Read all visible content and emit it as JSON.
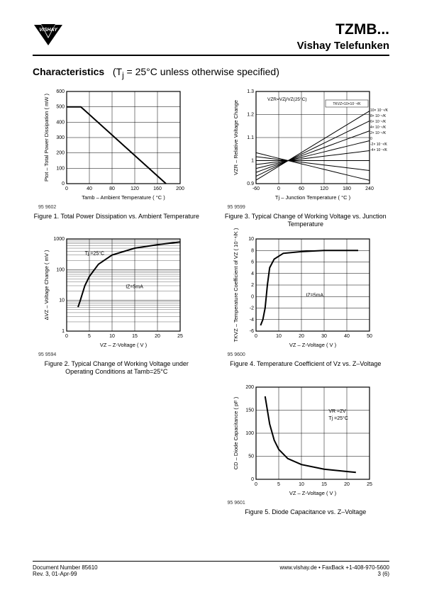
{
  "header": {
    "part_number": "TZMB...",
    "brand": "Vishay Telefunken"
  },
  "section": {
    "title": "Characteristics",
    "subtitle": "(Tj = 25°C unless otherwise specified)"
  },
  "figure1": {
    "type": "line",
    "fignum": "95 9602",
    "title": "Figure 1.  Total Power Dissipation vs.\nAmbient Temperature",
    "xlabel": "Tamb – Ambient Temperature ( °C )",
    "ylabel": "Ptot – Total Power Dissipation ( mW )",
    "xlim": [
      0,
      200
    ],
    "xtick_step": 40,
    "ylim": [
      0,
      600
    ],
    "ytick_step": 100,
    "data": [
      [
        0,
        500
      ],
      [
        25,
        500
      ],
      [
        175,
        0
      ]
    ],
    "line_color": "#000000",
    "line_width": 2,
    "grid_color": "#000000",
    "background_color": "#ffffff"
  },
  "figure2": {
    "type": "line-log",
    "fignum": "95 9594",
    "title": "Figure 2.  Typical Change of Working Voltage\nunder Operating Conditions at Tamb=25°C",
    "xlabel": "VZ – Z-Voltage ( V )",
    "ylabel": "ΔVZ – Voltage Change ( mV )",
    "xlim": [
      0,
      25
    ],
    "xtick_step": 5,
    "ylim": [
      1,
      1000
    ],
    "yticks": [
      1,
      10,
      100,
      1000
    ],
    "annotations": [
      "Tj =25°C",
      "IZ=5mA"
    ],
    "data": [
      [
        2.5,
        6
      ],
      [
        3,
        10
      ],
      [
        4,
        30
      ],
      [
        5,
        60
      ],
      [
        7,
        150
      ],
      [
        10,
        300
      ],
      [
        15,
        500
      ],
      [
        20,
        650
      ],
      [
        25,
        800
      ]
    ],
    "line_color": "#000000",
    "line_width": 2,
    "grid_color": "#000000",
    "background_color": "#ffffff"
  },
  "figure3": {
    "type": "line-multi",
    "fignum": "95 9599",
    "title": "Figure 3.  Typical Change of Working Voltage vs.\nJunction Temperature",
    "xlabel": "Tj – Junction Temperature ( °C )",
    "ylabel": "VZR – Relative Voltage Change",
    "xlim": [
      -60,
      240
    ],
    "xtick_step": 60,
    "ylim": [
      0.9,
      1.3
    ],
    "ytick_step": 0.1,
    "top_annotation": "VZR=VZj/VZ(25°C)",
    "legend_title": "TKVZ×10×10⁻⁴/K",
    "series_labels": [
      "10× 10⁻⁴/K",
      "8× 10⁻⁴/K",
      "6× 10⁻⁴/K",
      "4× 10⁻⁴/K",
      "2× 10⁻⁴/K",
      "0",
      "-2× 10⁻⁴/K",
      "-4× 10⁻⁴/K"
    ],
    "slopes": [
      0.001,
      0.0008,
      0.0006,
      0.0004,
      0.0002,
      0.0,
      -0.0002,
      -0.0004
    ],
    "pivot": [
      25,
      1.0
    ],
    "line_color": "#000000",
    "line_width": 1,
    "grid_color": "#000000",
    "background_color": "#ffffff"
  },
  "figure4": {
    "type": "line",
    "fignum": "95 9600",
    "title": "Figure 4.  Temperature Coefficient of Vz vs. Z–Voltage",
    "xlabel": "VZ – Z-Voltage ( V )",
    "ylabel": "TKVZ – Temperature Coefficient of VZ  ( 10⁻⁴/K )",
    "xlim": [
      0,
      50
    ],
    "xtick_step": 10,
    "ylim": [
      -6,
      10
    ],
    "ytick_step": 2,
    "annotation": "IZ=5mA",
    "data": [
      [
        2,
        -5
      ],
      [
        3,
        -4
      ],
      [
        4,
        -2
      ],
      [
        4.5,
        0
      ],
      [
        5,
        2
      ],
      [
        6,
        5
      ],
      [
        8,
        6.5
      ],
      [
        12,
        7.5
      ],
      [
        20,
        7.8
      ],
      [
        30,
        8
      ],
      [
        40,
        8
      ],
      [
        45,
        8
      ]
    ],
    "line_color": "#000000",
    "line_width": 2,
    "grid_color": "#000000",
    "background_color": "#ffffff"
  },
  "figure5": {
    "type": "line",
    "fignum": "95 9601",
    "title": "Figure 5.  Diode Capacitance vs. Z–Voltage",
    "xlabel": "VZ – Z-Voltage ( V )",
    "ylabel": "CD – Diode Capacitance ( pF )",
    "xlim": [
      0,
      25
    ],
    "xtick_step": 5,
    "ylim": [
      0,
      200
    ],
    "ytick_step": 50,
    "annotations": [
      "VR =2V",
      "Tj =25°C"
    ],
    "data": [
      [
        2,
        180
      ],
      [
        3,
        120
      ],
      [
        4,
        85
      ],
      [
        5,
        65
      ],
      [
        7,
        45
      ],
      [
        10,
        32
      ],
      [
        15,
        22
      ],
      [
        20,
        17
      ],
      [
        22,
        15
      ]
    ],
    "line_color": "#000000",
    "line_width": 2,
    "grid_color": "#000000",
    "background_color": "#ffffff"
  },
  "footer": {
    "doc_number": "Document Number 85610",
    "revision": "Rev. 3, 01-Apr-99",
    "url": "www.vishay.de • FaxBack +1-408-970-5600",
    "page": "3 (6)"
  }
}
